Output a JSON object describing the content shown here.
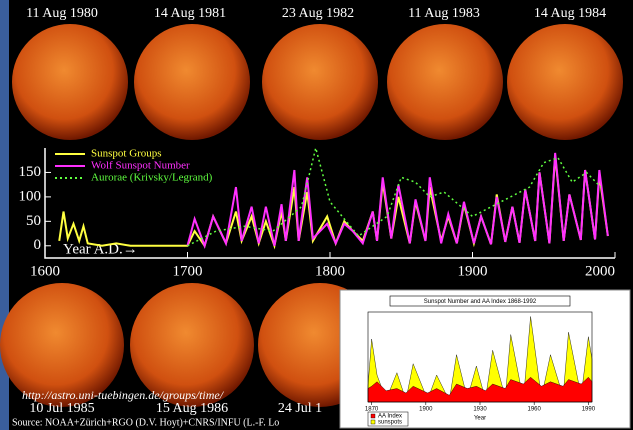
{
  "top_dates": [
    "11 Aug 1980",
    "14 Aug 1981",
    "23 Aug 1982",
    "11 Aug 1983",
    "14 Aug 1984"
  ],
  "bottom_dates": [
    "10 Jul 1985",
    "15 Aug 1986",
    "24 Jul 1"
  ],
  "url": "http://astro.uni-tuebingen.de/groups/time/",
  "source": "Source: NOAA+Zürich+RGO (D.V. Hoyt)+CNRS/INFU (L.-F. Lo",
  "chart_data": [
    {
      "type": "line",
      "annotation": "Year A.D.→",
      "xlim": [
        1600,
        2000
      ],
      "xticks": [
        1600,
        1700,
        1800,
        1900,
        2000
      ],
      "ylim": [
        -25,
        200
      ],
      "yticks": [
        0,
        50,
        100,
        150
      ],
      "series": [
        {
          "name": "Sunspot Groups",
          "color": "#ffff40",
          "style": "solid",
          "x": [
            1610,
            1613,
            1616,
            1620,
            1624,
            1627,
            1630,
            1640,
            1650,
            1660,
            1680,
            1700,
            1705,
            1712,
            1718,
            1727,
            1734,
            1738,
            1745,
            1750,
            1755,
            1761,
            1766,
            1769,
            1775,
            1778,
            1784,
            1788,
            1798,
            1804,
            1810,
            1816,
            1823,
            1830,
            1833,
            1837,
            1843,
            1848,
            1856,
            1860,
            1867,
            1870,
            1878,
            1883,
            1889,
            1894,
            1901,
            1906,
            1913,
            1917,
            1923,
            1928,
            1933,
            1937,
            1944,
            1947,
            1954,
            1958,
            1964,
            1968,
            1976,
            1979,
            1986,
            1989,
            1995
          ],
          "values": [
            10,
            70,
            15,
            45,
            10,
            40,
            5,
            0,
            5,
            0,
            0,
            0,
            30,
            0,
            60,
            5,
            70,
            10,
            60,
            5,
            50,
            0,
            70,
            10,
            120,
            10,
            110,
            10,
            60,
            5,
            50,
            30,
            10,
            70,
            10,
            130,
            15,
            100,
            5,
            90,
            10,
            120,
            10,
            60,
            5,
            85,
            5,
            60,
            3,
            105,
            8,
            80,
            6,
            115,
            10,
            150,
            5,
            185,
            10,
            105,
            12,
            155,
            13,
            145,
            20
          ]
        },
        {
          "name": "Wolf Sunspot Number",
          "color": "#ff30ff",
          "style": "solid",
          "x": [
            1700,
            1705,
            1712,
            1718,
            1727,
            1734,
            1738,
            1745,
            1750,
            1755,
            1761,
            1766,
            1769,
            1775,
            1778,
            1784,
            1788,
            1798,
            1804,
            1810,
            1816,
            1823,
            1830,
            1833,
            1837,
            1843,
            1848,
            1856,
            1860,
            1867,
            1870,
            1878,
            1883,
            1889,
            1894,
            1901,
            1906,
            1913,
            1917,
            1923,
            1928,
            1933,
            1937,
            1944,
            1947,
            1954,
            1958,
            1964,
            1968,
            1976,
            1979,
            1986,
            1989,
            1995
          ],
          "values": [
            0,
            55,
            0,
            60,
            5,
            120,
            10,
            80,
            5,
            80,
            0,
            85,
            10,
            155,
            10,
            140,
            15,
            45,
            5,
            45,
            30,
            5,
            70,
            10,
            140,
            15,
            125,
            5,
            95,
            10,
            140,
            5,
            65,
            5,
            90,
            5,
            60,
            3,
            100,
            8,
            80,
            6,
            115,
            10,
            150,
            5,
            190,
            10,
            105,
            12,
            155,
            13,
            155,
            20
          ]
        },
        {
          "name": "Aurorae (Krivsky/Legrand)",
          "color": "#60ff40",
          "style": "dotted",
          "x": [
            1700,
            1720,
            1740,
            1760,
            1780,
            1790,
            1800,
            1820,
            1840,
            1850,
            1860,
            1870,
            1880,
            1900,
            1920,
            1940,
            1950,
            1960,
            1970,
            1980,
            1990
          ],
          "values": [
            0,
            30,
            40,
            30,
            80,
            200,
            90,
            20,
            60,
            140,
            130,
            100,
            110,
            60,
            90,
            120,
            170,
            180,
            130,
            150,
            120
          ]
        }
      ]
    },
    {
      "type": "area",
      "title": "Sunspot Number and AA Index 1868-1992",
      "xlabel": "Year",
      "xlim": [
        1868,
        1992
      ],
      "xticks": [
        1870,
        1900,
        1930,
        1960,
        1990
      ],
      "ylim": [
        0,
        200
      ],
      "x": [
        1868,
        1870,
        1873,
        1878,
        1884,
        1889,
        1893,
        1901,
        1906,
        1913,
        1917,
        1923,
        1928,
        1933,
        1937,
        1944,
        1947,
        1954,
        1958,
        1964,
        1969,
        1976,
        1979,
        1986,
        1990,
        1992
      ],
      "series": [
        {
          "name": "sunspots",
          "color": "#ffff00",
          "values": [
            35,
            140,
            60,
            5,
            65,
            5,
            85,
            5,
            60,
            3,
            105,
            8,
            80,
            6,
            115,
            10,
            150,
            5,
            190,
            10,
            105,
            12,
            155,
            13,
            145,
            95
          ]
        },
        {
          "name": "AA Index",
          "color": "#ff0000",
          "values": [
            30,
            35,
            45,
            25,
            30,
            20,
            35,
            20,
            30,
            15,
            40,
            30,
            35,
            25,
            40,
            30,
            50,
            40,
            55,
            35,
            45,
            35,
            50,
            40,
            55,
            45
          ]
        }
      ]
    }
  ]
}
